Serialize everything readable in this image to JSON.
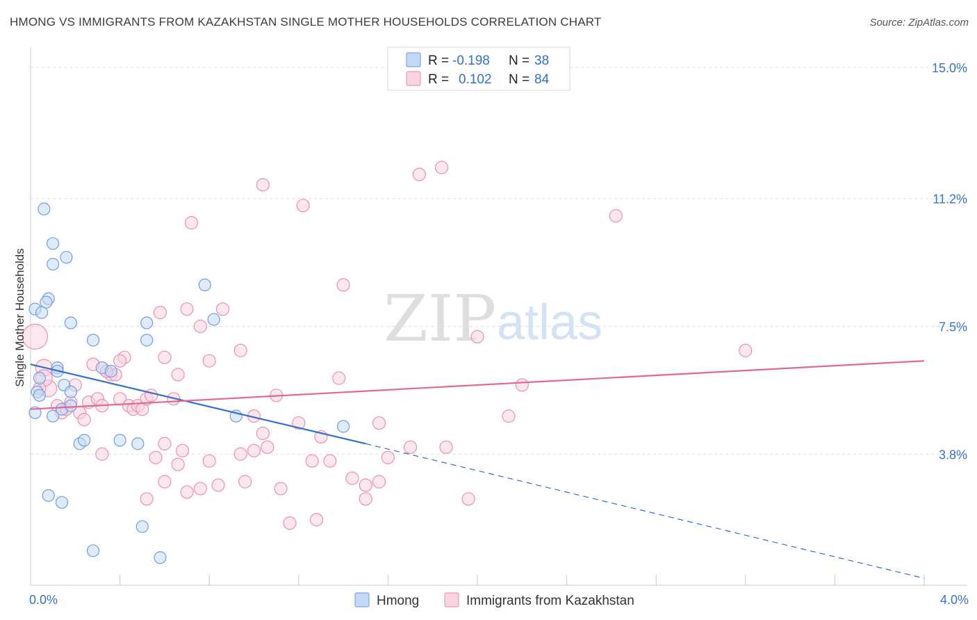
{
  "title": "HMONG VS IMMIGRANTS FROM KAZAKHSTAN SINGLE MOTHER HOUSEHOLDS CORRELATION CHART",
  "source": "Source: ZipAtlas.com",
  "watermark": {
    "zip": "ZIP",
    "atlas": "atlas"
  },
  "colors": {
    "hmong": "#6f9fe0",
    "hmong_fill": "#c4d9f5",
    "kazakhstan": "#ee8fae",
    "kazakhstan_fill": "#f9d3e0",
    "hmong_line": "#2e6fd0",
    "kazakhstan_line": "#e36794",
    "tick_text": "#3a72c6"
  },
  "legend": {
    "rows": [
      {
        "r_label": "R =",
        "r_value": "-0.198",
        "n_label": "N =",
        "n_value": "38"
      },
      {
        "r_label": "R =",
        "r_value": "0.102",
        "n_label": "N =",
        "n_value": "84"
      }
    ]
  },
  "chart_data": {
    "type": "scatter",
    "title": "HMONG VS IMMIGRANTS FROM KAZAKHSTAN SINGLE MOTHER HOUSEHOLDS CORRELATION CHART",
    "xlabel": "",
    "ylabel": "Single Mother Households",
    "xlim": [
      0,
      4.0
    ],
    "ylim": [
      0,
      15.0
    ],
    "x_tick_labels": [
      "0.0%",
      "4.0%"
    ],
    "y_tick_labels": [
      "15.0%",
      "11.2%",
      "7.5%",
      "3.8%"
    ],
    "y_ticks": [
      15.0,
      11.2,
      7.5,
      3.8
    ],
    "grid": true,
    "legend_position": "top-center",
    "series": [
      {
        "name": "Hmong",
        "r": -0.198,
        "n": 38,
        "trend": {
          "x0": 0.0,
          "y0": 6.4,
          "x1": 1.5,
          "y1": 4.1,
          "dash_to_x": 4.0,
          "dash_to_y": 0.2
        },
        "points": [
          [
            0.02,
            8.0
          ],
          [
            0.05,
            7.9
          ],
          [
            0.08,
            8.3
          ],
          [
            0.07,
            8.2
          ],
          [
            0.06,
            10.9
          ],
          [
            0.1,
            9.9
          ],
          [
            0.1,
            9.3
          ],
          [
            0.16,
            9.5
          ],
          [
            0.18,
            7.6
          ],
          [
            0.28,
            7.1
          ],
          [
            0.52,
            7.6
          ],
          [
            0.52,
            7.1
          ],
          [
            0.78,
            8.7
          ],
          [
            0.82,
            7.7
          ],
          [
            0.04,
            6.0
          ],
          [
            0.12,
            6.3
          ],
          [
            0.12,
            6.2
          ],
          [
            0.15,
            5.8
          ],
          [
            0.18,
            5.6
          ],
          [
            0.03,
            5.6
          ],
          [
            0.04,
            5.5
          ],
          [
            0.02,
            5.0
          ],
          [
            0.1,
            4.9
          ],
          [
            0.14,
            5.1
          ],
          [
            0.18,
            5.2
          ],
          [
            0.32,
            6.3
          ],
          [
            0.36,
            6.2
          ],
          [
            0.22,
            4.1
          ],
          [
            0.24,
            4.2
          ],
          [
            0.4,
            4.2
          ],
          [
            0.48,
            4.1
          ],
          [
            0.92,
            4.9
          ],
          [
            1.4,
            4.6
          ],
          [
            0.08,
            2.6
          ],
          [
            0.14,
            2.4
          ],
          [
            0.5,
            1.7
          ],
          [
            0.28,
            1.0
          ],
          [
            0.58,
            0.8
          ]
        ]
      },
      {
        "name": "Immigrants from Kazakhstan",
        "r": 0.102,
        "n": 84,
        "trend": {
          "x0": 0.0,
          "y0": 5.1,
          "x1": 4.0,
          "y1": 6.5
        },
        "points": [
          [
            0.02,
            7.2
          ],
          [
            0.06,
            6.3
          ],
          [
            0.08,
            5.7
          ],
          [
            0.06,
            6.0
          ],
          [
            0.04,
            5.7
          ],
          [
            0.12,
            5.2
          ],
          [
            0.14,
            5.0
          ],
          [
            0.16,
            5.1
          ],
          [
            0.18,
            5.3
          ],
          [
            0.2,
            5.8
          ],
          [
            0.22,
            5.0
          ],
          [
            0.24,
            4.8
          ],
          [
            0.26,
            5.3
          ],
          [
            0.28,
            6.4
          ],
          [
            0.3,
            5.4
          ],
          [
            0.32,
            5.2
          ],
          [
            0.34,
            6.2
          ],
          [
            0.36,
            6.1
          ],
          [
            0.38,
            6.1
          ],
          [
            0.4,
            5.4
          ],
          [
            0.42,
            6.6
          ],
          [
            0.44,
            5.2
          ],
          [
            0.46,
            5.1
          ],
          [
            0.48,
            5.2
          ],
          [
            0.5,
            5.1
          ],
          [
            0.52,
            5.4
          ],
          [
            0.54,
            5.5
          ],
          [
            0.34,
            6.2
          ],
          [
            0.4,
            6.5
          ],
          [
            0.58,
            7.9
          ],
          [
            0.6,
            6.6
          ],
          [
            0.66,
            6.1
          ],
          [
            0.7,
            8.0
          ],
          [
            0.76,
            7.5
          ],
          [
            0.8,
            6.5
          ],
          [
            0.86,
            8.0
          ],
          [
            0.94,
            6.8
          ],
          [
            0.64,
            5.4
          ],
          [
            0.72,
            10.5
          ],
          [
            1.0,
            4.9
          ],
          [
            1.04,
            4.4
          ],
          [
            1.06,
            4.0
          ],
          [
            1.1,
            5.5
          ],
          [
            1.04,
            11.6
          ],
          [
            1.2,
            4.7
          ],
          [
            1.22,
            11.0
          ],
          [
            1.3,
            4.3
          ],
          [
            1.34,
            3.6
          ],
          [
            1.38,
            6.0
          ],
          [
            1.4,
            8.7
          ],
          [
            1.44,
            3.1
          ],
          [
            1.5,
            2.5
          ],
          [
            1.56,
            3.0
          ],
          [
            1.56,
            4.7
          ],
          [
            1.6,
            3.7
          ],
          [
            1.7,
            4.0
          ],
          [
            1.74,
            11.9
          ],
          [
            1.84,
            12.1
          ],
          [
            1.86,
            4.0
          ],
          [
            1.96,
            2.5
          ],
          [
            2.0,
            7.2
          ],
          [
            2.14,
            4.9
          ],
          [
            2.2,
            5.8
          ],
          [
            2.62,
            10.7
          ],
          [
            3.2,
            6.8
          ],
          [
            0.32,
            3.8
          ],
          [
            0.52,
            2.5
          ],
          [
            0.56,
            3.7
          ],
          [
            0.6,
            3.0
          ],
          [
            0.66,
            3.5
          ],
          [
            0.7,
            2.7
          ],
          [
            0.76,
            2.8
          ],
          [
            0.8,
            3.6
          ],
          [
            0.84,
            2.9
          ],
          [
            0.94,
            3.8
          ],
          [
            0.96,
            3.0
          ],
          [
            1.0,
            3.9
          ],
          [
            1.12,
            2.8
          ],
          [
            1.16,
            1.8
          ],
          [
            1.26,
            3.6
          ],
          [
            1.28,
            1.9
          ],
          [
            1.5,
            2.9
          ],
          [
            0.68,
            3.9
          ],
          [
            0.6,
            4.1
          ]
        ]
      }
    ]
  },
  "bottom_legend": [
    {
      "label": "Hmong"
    },
    {
      "label": "Immigrants from Kazakhstan"
    }
  ]
}
